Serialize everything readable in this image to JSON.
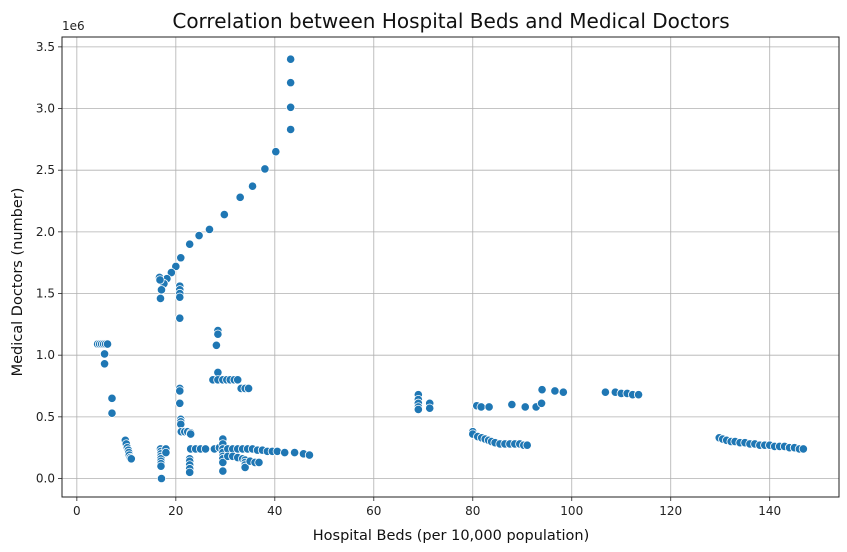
{
  "chart_data": {
    "type": "scatter",
    "title": "Correlation between Hospital Beds and Medical Doctors",
    "xlabel": "Hospital Beds (per 10,000 population)",
    "ylabel": "Medical Doctors (number)",
    "y_offset_label": "1e6",
    "xlim": [
      -3,
      154
    ],
    "ylim": [
      -0.15,
      3.58
    ],
    "x_ticks": [
      0,
      20,
      40,
      60,
      80,
      100,
      120,
      140
    ],
    "x_tick_labels": [
      "0",
      "20",
      "40",
      "60",
      "80",
      "100",
      "120",
      "140"
    ],
    "y_ticks": [
      0.0,
      0.5,
      1.0,
      1.5,
      2.0,
      2.5,
      3.0,
      3.5
    ],
    "y_tick_labels": [
      "0.0",
      "0.5",
      "1.0",
      "1.5",
      "2.0",
      "2.5",
      "3.0",
      "3.5"
    ],
    "grid": true,
    "color": "#1f77b4",
    "points": [
      [
        43.2,
        3.4
      ],
      [
        43.2,
        3.21
      ],
      [
        43.2,
        3.01
      ],
      [
        43.2,
        2.83
      ],
      [
        40.2,
        2.65
      ],
      [
        38.0,
        2.51
      ],
      [
        35.5,
        2.37
      ],
      [
        33.0,
        2.28
      ],
      [
        29.8,
        2.14
      ],
      [
        26.8,
        2.02
      ],
      [
        24.7,
        1.97
      ],
      [
        22.8,
        1.9
      ],
      [
        21.0,
        1.79
      ],
      [
        20.0,
        1.72
      ],
      [
        19.1,
        1.67
      ],
      [
        18.2,
        1.62
      ],
      [
        17.6,
        1.58
      ],
      [
        17.1,
        1.53
      ],
      [
        16.9,
        1.46
      ],
      [
        16.7,
        1.63
      ],
      [
        16.8,
        1.61
      ],
      [
        20.8,
        1.56
      ],
      [
        20.8,
        1.53
      ],
      [
        20.8,
        1.5
      ],
      [
        20.8,
        1.47
      ],
      [
        20.8,
        1.3
      ],
      [
        20.8,
        0.73
      ],
      [
        20.8,
        0.71
      ],
      [
        20.8,
        0.61
      ],
      [
        21.0,
        0.48
      ],
      [
        21.0,
        0.46
      ],
      [
        21.0,
        0.44
      ],
      [
        21.1,
        0.38
      ],
      [
        21.8,
        0.38
      ],
      [
        22.4,
        0.38
      ],
      [
        23.0,
        0.37
      ],
      [
        23.0,
        0.36
      ],
      [
        4.2,
        1.09
      ],
      [
        4.6,
        1.09
      ],
      [
        5.0,
        1.09
      ],
      [
        5.4,
        1.09
      ],
      [
        5.8,
        1.09
      ],
      [
        6.2,
        1.09
      ],
      [
        5.6,
        1.01
      ],
      [
        5.6,
        0.93
      ],
      [
        7.1,
        0.65
      ],
      [
        7.1,
        0.53
      ],
      [
        9.8,
        0.31
      ],
      [
        10.0,
        0.28
      ],
      [
        10.2,
        0.25
      ],
      [
        10.4,
        0.23
      ],
      [
        10.5,
        0.21
      ],
      [
        10.6,
        0.19
      ],
      [
        10.8,
        0.17
      ],
      [
        11.0,
        0.16
      ],
      [
        16.9,
        0.24
      ],
      [
        17.0,
        0.22
      ],
      [
        17.0,
        0.2
      ],
      [
        17.0,
        0.18
      ],
      [
        17.0,
        0.16
      ],
      [
        17.0,
        0.14
      ],
      [
        17.0,
        0.12
      ],
      [
        17.0,
        0.1
      ],
      [
        18.0,
        0.24
      ],
      [
        18.0,
        0.21
      ],
      [
        17.1,
        0.0
      ],
      [
        23.0,
        0.24
      ],
      [
        24.0,
        0.24
      ],
      [
        25.0,
        0.24
      ],
      [
        26.0,
        0.24
      ],
      [
        22.8,
        0.16
      ],
      [
        22.8,
        0.14
      ],
      [
        22.8,
        0.11
      ],
      [
        22.8,
        0.08
      ],
      [
        22.8,
        0.05
      ],
      [
        28.5,
        1.2
      ],
      [
        28.5,
        1.17
      ],
      [
        28.2,
        1.08
      ],
      [
        28.5,
        0.86
      ],
      [
        27.5,
        0.8
      ],
      [
        28.5,
        0.8
      ],
      [
        29.5,
        0.8
      ],
      [
        30.3,
        0.8
      ],
      [
        31.0,
        0.8
      ],
      [
        31.8,
        0.8
      ],
      [
        32.5,
        0.8
      ],
      [
        33.2,
        0.73
      ],
      [
        34.0,
        0.73
      ],
      [
        34.7,
        0.73
      ],
      [
        27.8,
        0.24
      ],
      [
        28.8,
        0.25
      ],
      [
        29.5,
        0.32
      ],
      [
        29.5,
        0.28
      ],
      [
        29.5,
        0.24
      ],
      [
        29.5,
        0.21
      ],
      [
        29.5,
        0.18
      ],
      [
        29.5,
        0.16
      ],
      [
        29.5,
        0.13
      ],
      [
        29.5,
        0.06
      ],
      [
        30.5,
        0.24
      ],
      [
        31.5,
        0.24
      ],
      [
        32.5,
        0.24
      ],
      [
        33.5,
        0.24
      ],
      [
        34.5,
        0.24
      ],
      [
        35.5,
        0.24
      ],
      [
        36.5,
        0.23
      ],
      [
        37.5,
        0.23
      ],
      [
        38.5,
        0.22
      ],
      [
        39.5,
        0.22
      ],
      [
        40.5,
        0.22
      ],
      [
        42.0,
        0.21
      ],
      [
        44.0,
        0.21
      ],
      [
        45.8,
        0.2
      ],
      [
        47.0,
        0.19
      ],
      [
        30.5,
        0.18
      ],
      [
        31.5,
        0.18
      ],
      [
        32.5,
        0.17
      ],
      [
        33.5,
        0.16
      ],
      [
        34.0,
        0.15
      ],
      [
        34.0,
        0.13
      ],
      [
        34.0,
        0.11
      ],
      [
        34.0,
        0.09
      ],
      [
        35.0,
        0.14
      ],
      [
        36.0,
        0.13
      ],
      [
        36.8,
        0.13
      ],
      [
        69.0,
        0.68
      ],
      [
        69.0,
        0.64
      ],
      [
        69.0,
        0.61
      ],
      [
        69.0,
        0.58
      ],
      [
        69.0,
        0.56
      ],
      [
        71.3,
        0.61
      ],
      [
        71.3,
        0.57
      ],
      [
        80.8,
        0.59
      ],
      [
        81.7,
        0.58
      ],
      [
        83.3,
        0.58
      ],
      [
        87.9,
        0.6
      ],
      [
        90.6,
        0.58
      ],
      [
        92.8,
        0.58
      ],
      [
        93.9,
        0.61
      ],
      [
        94.0,
        0.72
      ],
      [
        96.6,
        0.71
      ],
      [
        98.3,
        0.7
      ],
      [
        106.8,
        0.7
      ],
      [
        108.8,
        0.7
      ],
      [
        110.0,
        0.69
      ],
      [
        111.2,
        0.69
      ],
      [
        112.3,
        0.68
      ],
      [
        113.5,
        0.68
      ],
      [
        80.0,
        0.38
      ],
      [
        80.0,
        0.36
      ],
      [
        81.0,
        0.34
      ],
      [
        81.8,
        0.33
      ],
      [
        82.5,
        0.32
      ],
      [
        83.2,
        0.31
      ],
      [
        83.8,
        0.3
      ],
      [
        84.5,
        0.29
      ],
      [
        85.5,
        0.28
      ],
      [
        86.5,
        0.28
      ],
      [
        87.5,
        0.28
      ],
      [
        88.5,
        0.28
      ],
      [
        89.5,
        0.28
      ],
      [
        90.3,
        0.27
      ],
      [
        91.0,
        0.27
      ],
      [
        129.8,
        0.33
      ],
      [
        130.5,
        0.32
      ],
      [
        131.3,
        0.31
      ],
      [
        132.2,
        0.3
      ],
      [
        133.0,
        0.3
      ],
      [
        134.0,
        0.29
      ],
      [
        135.0,
        0.29
      ],
      [
        136.0,
        0.28
      ],
      [
        137.0,
        0.28
      ],
      [
        138.0,
        0.27
      ],
      [
        139.0,
        0.27
      ],
      [
        140.0,
        0.27
      ],
      [
        141.0,
        0.26
      ],
      [
        142.0,
        0.26
      ],
      [
        143.0,
        0.26
      ],
      [
        144.0,
        0.25
      ],
      [
        145.0,
        0.25
      ],
      [
        146.0,
        0.24
      ],
      [
        146.8,
        0.24
      ]
    ]
  }
}
